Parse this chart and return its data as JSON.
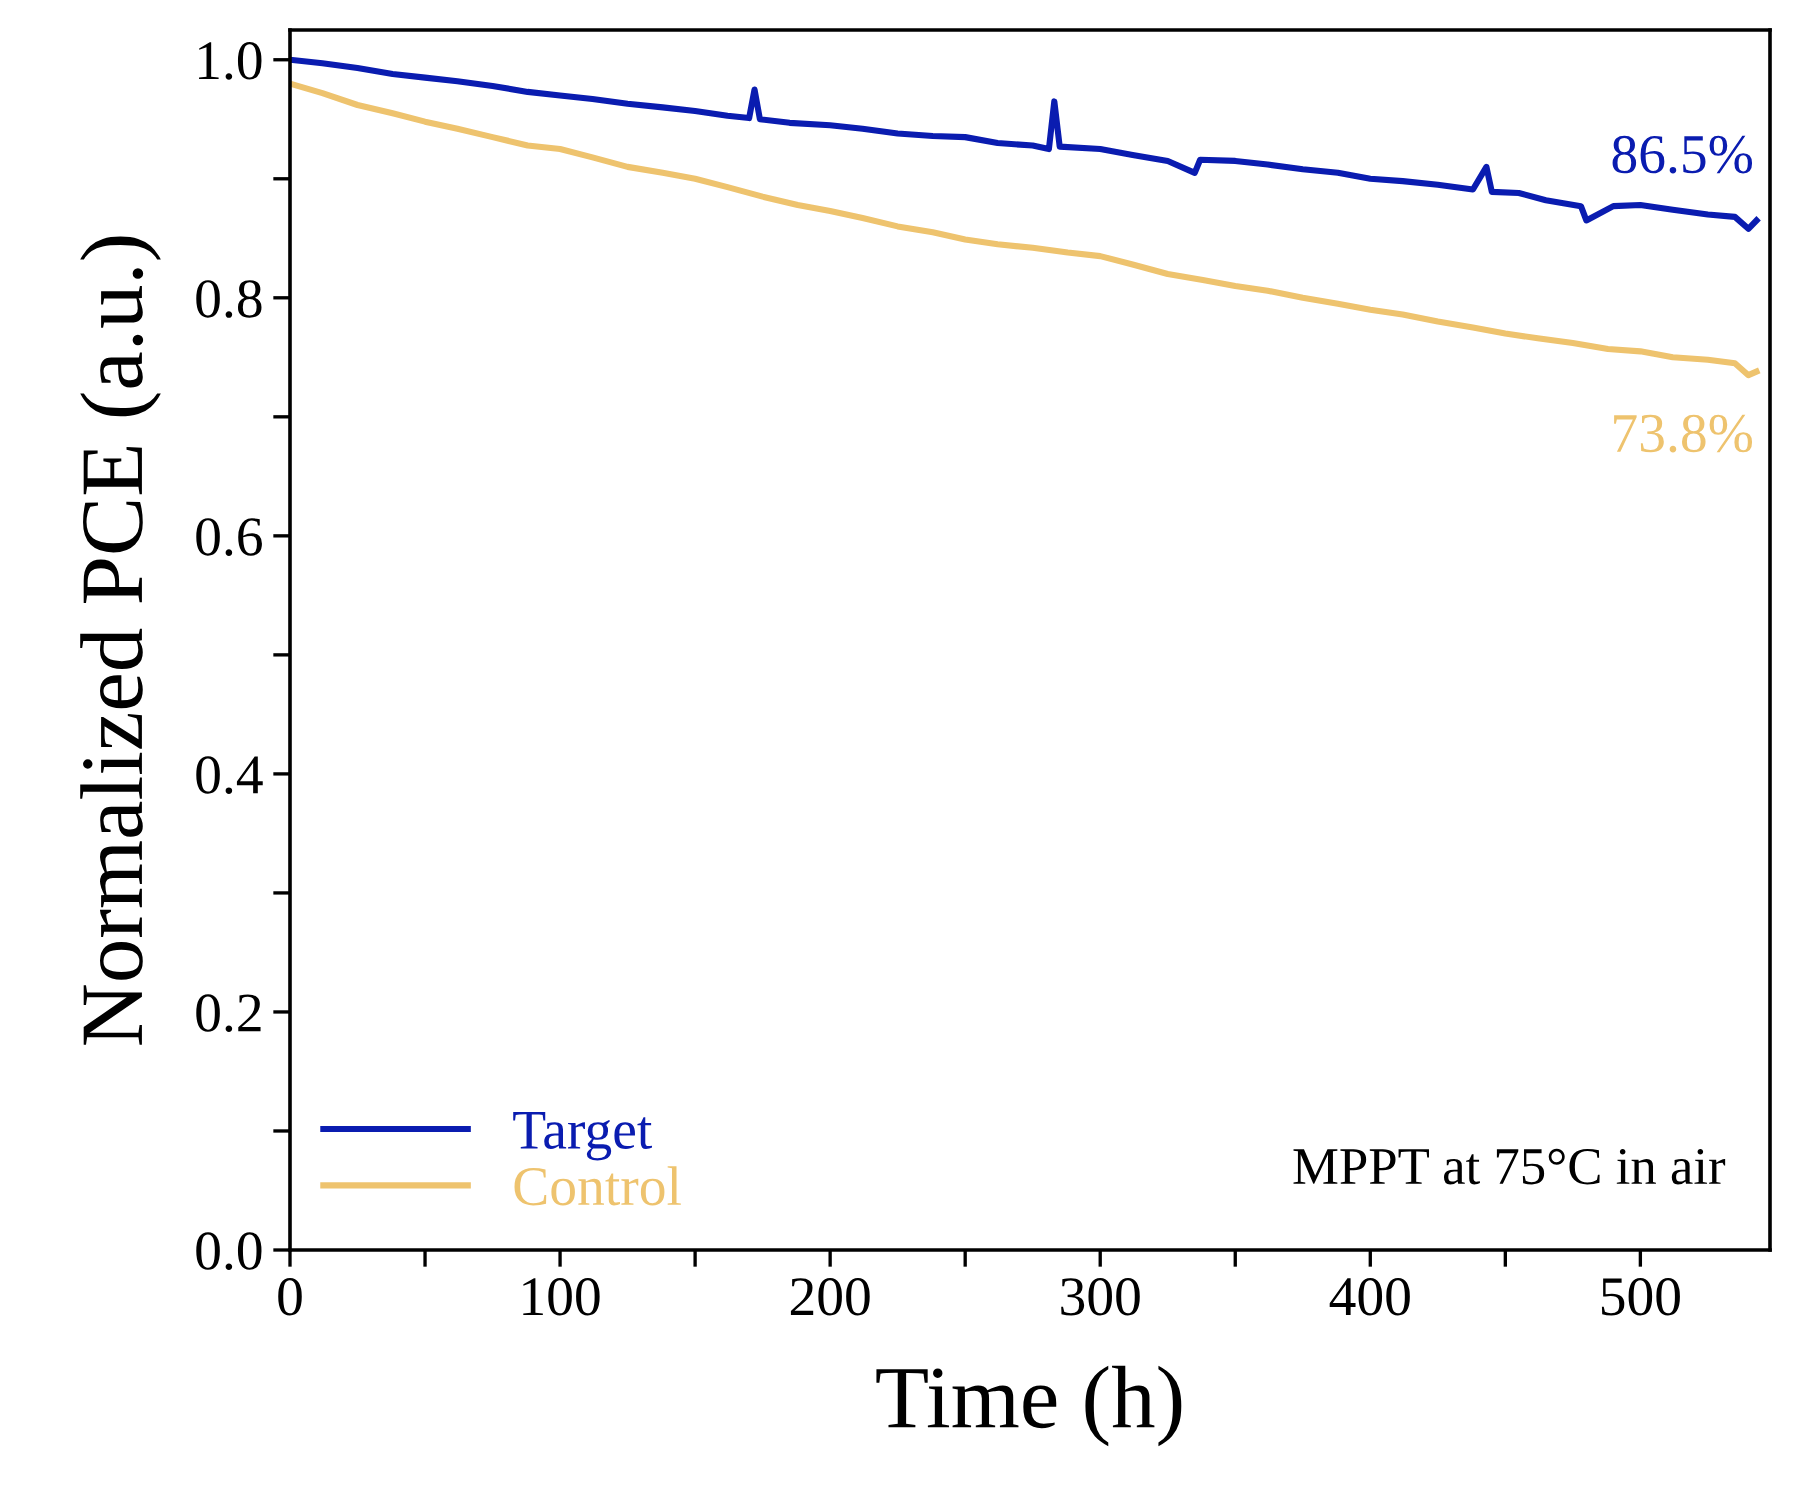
{
  "chart_data": {
    "type": "line",
    "xlabel": "Time (h)",
    "ylabel": "Normalized PCE (a.u.)",
    "xlim": [
      0,
      548
    ],
    "ylim": [
      0,
      1.025
    ],
    "xticks": [
      0,
      {
        "value": 50,
        "label": null
      },
      100,
      {
        "value": 150,
        "label": null
      },
      200,
      {
        "value": 250,
        "label": null
      },
      300,
      {
        "value": 350,
        "label": null
      },
      400,
      {
        "value": 450,
        "label": null
      },
      500
    ],
    "yticks": [
      "0.0",
      {
        "value": 0.1,
        "label": null
      },
      {
        "value": 0.2,
        "label": "0.2"
      },
      {
        "value": 0.3,
        "label": null
      },
      {
        "value": 0.4,
        "label": "0.4"
      },
      {
        "value": 0.5,
        "label": null
      },
      {
        "value": 0.6,
        "label": "0.6"
      },
      {
        "value": 0.7,
        "label": null
      },
      {
        "value": 0.8,
        "label": "0.8"
      },
      {
        "value": 0.9,
        "label": null
      },
      {
        "value": 1.0,
        "label": "1.0"
      }
    ],
    "series": [
      {
        "name": "Target",
        "color": "#0a1cb0",
        "x": [
          0,
          12,
          25,
          38,
          50,
          62,
          75,
          88,
          100,
          112,
          125,
          138,
          150,
          162,
          170,
          172,
          174,
          185,
          200,
          212,
          225,
          238,
          250,
          262,
          275,
          281,
          283,
          285,
          300,
          312,
          325,
          335,
          337,
          350,
          362,
          375,
          388,
          400,
          412,
          425,
          438,
          443,
          445,
          455,
          465,
          478,
          480,
          490,
          500,
          512,
          525,
          535,
          540,
          543
        ],
        "values": [
          1.0,
          0.997,
          0.993,
          0.988,
          0.985,
          0.982,
          0.978,
          0.973,
          0.97,
          0.967,
          0.963,
          0.96,
          0.957,
          0.953,
          0.951,
          0.975,
          0.95,
          0.947,
          0.945,
          0.942,
          0.938,
          0.936,
          0.935,
          0.93,
          0.928,
          0.925,
          0.965,
          0.927,
          0.925,
          0.92,
          0.915,
          0.905,
          0.916,
          0.915,
          0.912,
          0.908,
          0.905,
          0.9,
          0.898,
          0.895,
          0.891,
          0.91,
          0.889,
          0.888,
          0.882,
          0.877,
          0.865,
          0.877,
          0.878,
          0.874,
          0.87,
          0.868,
          0.858,
          0.865
        ]
      },
      {
        "name": "Control",
        "color": "#eec36e",
        "x": [
          0,
          12,
          25,
          38,
          50,
          62,
          75,
          88,
          100,
          112,
          125,
          138,
          150,
          162,
          175,
          188,
          200,
          212,
          225,
          238,
          250,
          262,
          275,
          288,
          300,
          312,
          325,
          338,
          350,
          362,
          375,
          388,
          400,
          412,
          425,
          438,
          450,
          462,
          475,
          488,
          500,
          512,
          525,
          535,
          540,
          543
        ],
        "values": [
          0.98,
          0.972,
          0.962,
          0.955,
          0.948,
          0.942,
          0.935,
          0.928,
          0.925,
          0.918,
          0.91,
          0.905,
          0.9,
          0.893,
          0.885,
          0.878,
          0.873,
          0.867,
          0.86,
          0.855,
          0.849,
          0.845,
          0.842,
          0.838,
          0.835,
          0.828,
          0.82,
          0.815,
          0.81,
          0.806,
          0.8,
          0.795,
          0.79,
          0.786,
          0.78,
          0.775,
          0.77,
          0.766,
          0.762,
          0.757,
          0.755,
          0.75,
          0.748,
          0.745,
          0.735,
          0.738
        ]
      }
    ],
    "annotations": [
      {
        "text": "86.5%",
        "x": 540,
        "y": 0.865
      },
      {
        "text": "73.8%",
        "x": 540,
        "y": 0.738
      },
      "MPPT at 75°C in air"
    ],
    "legend": "bottom left",
    "grid": false,
    "marker": "none",
    "line_style": "solid"
  }
}
